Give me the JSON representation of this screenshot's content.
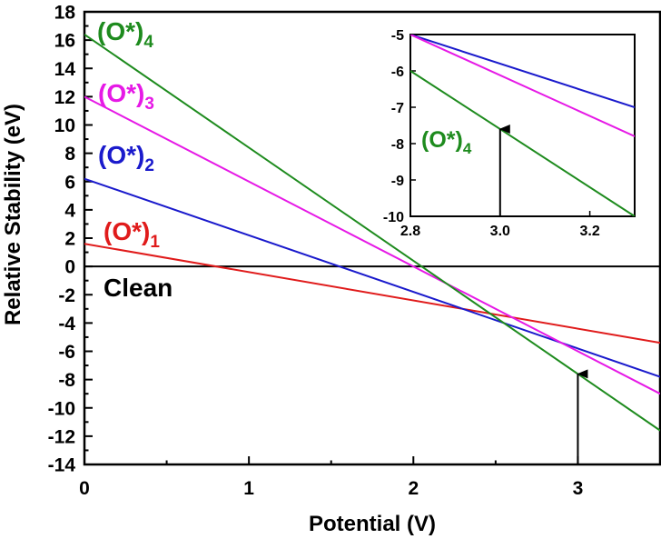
{
  "chart_data": [
    {
      "type": "line",
      "xlabel": "Potential (V)",
      "ylabel": "Relative Stability (eV)",
      "xlim": [
        0,
        3.5
      ],
      "ylim": [
        -14,
        18
      ],
      "xticks": [
        "0",
        "1",
        "2",
        "3"
      ],
      "yticks": [
        "18",
        "16",
        "14",
        "12",
        "10",
        "8",
        "6",
        "4",
        "2",
        "0",
        "-2",
        "-4",
        "-6",
        "-8",
        "-10",
        "-12",
        "-14"
      ],
      "series": [
        {
          "name": "(O*)",
          "subscript": "4",
          "color": "#1e8b1e",
          "x": [
            0,
            3.5
          ],
          "y": [
            16.4,
            -11.6
          ]
        },
        {
          "name": "(O*)",
          "subscript": "3",
          "color": "#e619e6",
          "x": [
            0,
            3.5
          ],
          "y": [
            12.0,
            -9.0
          ]
        },
        {
          "name": "(O*)",
          "subscript": "2",
          "color": "#1a1acc",
          "x": [
            0,
            3.5
          ],
          "y": [
            6.2,
            -7.8
          ]
        },
        {
          "name": "(O*)",
          "subscript": "1",
          "color": "#e01b1b",
          "x": [
            0,
            3.5
          ],
          "y": [
            1.6,
            -5.4
          ]
        },
        {
          "name": "Clean",
          "color": "#000000",
          "x": [
            0,
            3.5
          ],
          "y": [
            0,
            0
          ]
        }
      ],
      "annotations": [
        {
          "type": "arrow",
          "x": 3.0,
          "from_y": -14,
          "to_y": -7.6
        }
      ]
    },
    {
      "type": "line",
      "inset": true,
      "xlim": [
        2.8,
        3.3
      ],
      "ylim": [
        -10,
        -5
      ],
      "xticks": [
        "2.8",
        "3.0",
        "3.2"
      ],
      "yticks": [
        "-5",
        "-6",
        "-7",
        "-8",
        "-9",
        "-10"
      ],
      "series": [
        {
          "color": "#1e8b1e",
          "x": [
            2.8,
            3.3
          ],
          "y": [
            -6.0,
            -10.0
          ]
        },
        {
          "color": "#e619e6",
          "x": [
            2.8,
            3.3
          ],
          "y": [
            -5.0,
            -7.8
          ]
        },
        {
          "color": "#1a1acc",
          "x": [
            2.8,
            3.3
          ],
          "y": [
            -5.0,
            -7.0
          ]
        }
      ],
      "annotations": [
        {
          "type": "arrow",
          "x": 3.0,
          "from_y": -10,
          "to_y": -7.6
        },
        {
          "type": "label",
          "text": "(O*)",
          "subscript": "4",
          "color": "#1e8b1e"
        }
      ]
    }
  ]
}
